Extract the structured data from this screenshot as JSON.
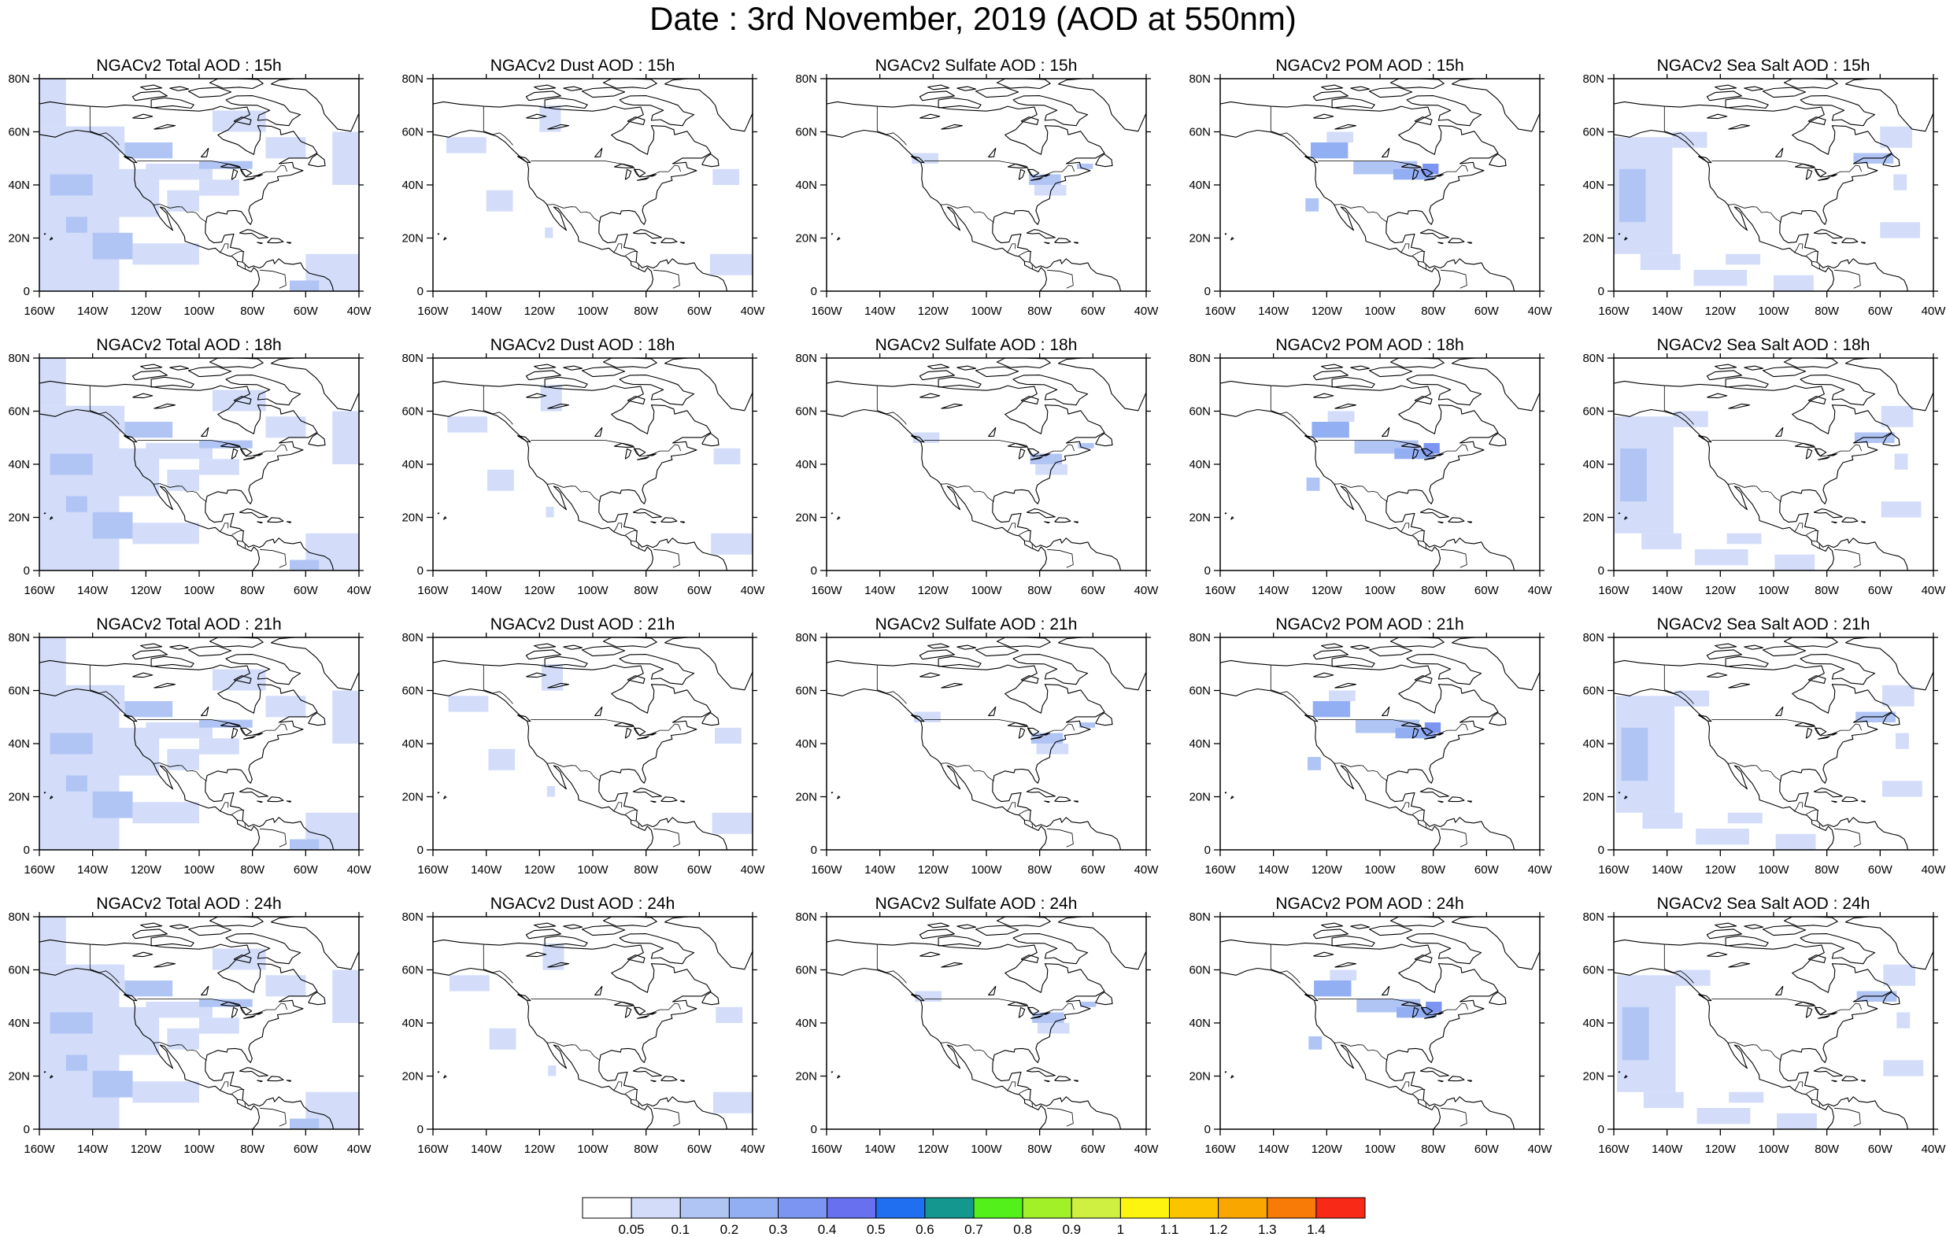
{
  "title": "Date : 3rd November, 2019 (AOD at 550nm)",
  "axis": {
    "lon_ticks": [
      "160W",
      "140W",
      "120W",
      "100W",
      "80W",
      "60W",
      "40W"
    ],
    "lat_ticks": [
      "80N",
      "60N",
      "40N",
      "20N",
      "0"
    ]
  },
  "colors": {
    "line": "#000000",
    "palette": [
      "#ffffff",
      "#d3ddf9",
      "#b1c5f5",
      "#93aff4",
      "#7c95f2",
      "#6970ef",
      "#1f6ff0",
      "#13978e",
      "#53f01b",
      "#a2f128",
      "#cff040",
      "#fdf510",
      "#fbc300",
      "#f9a600",
      "#f97b07",
      "#f82a17"
    ]
  },
  "colorbar": {
    "labels": [
      "0.05",
      "0.1",
      "0.2",
      "0.3",
      "0.4",
      "0.5",
      "0.6",
      "0.7",
      "0.8",
      "0.9",
      "1",
      "1.1",
      "1.2",
      "1.3",
      "1.4"
    ]
  },
  "panels": [
    {
      "title": "NGACv2 Total AOD : 15h",
      "species": "total"
    },
    {
      "title": "NGACv2 Dust AOD : 15h",
      "species": "dust"
    },
    {
      "title": "NGACv2 Sulfate AOD : 15h",
      "species": "sulfate"
    },
    {
      "title": "NGACv2 POM AOD : 15h",
      "species": "pom"
    },
    {
      "title": "NGACv2 Sea Salt AOD : 15h",
      "species": "seasalt"
    },
    {
      "title": "NGACv2 Total AOD : 18h",
      "species": "total"
    },
    {
      "title": "NGACv2 Dust AOD : 18h",
      "species": "dust"
    },
    {
      "title": "NGACv2 Sulfate AOD : 18h",
      "species": "sulfate"
    },
    {
      "title": "NGACv2 POM AOD : 18h",
      "species": "pom"
    },
    {
      "title": "NGACv2 Sea Salt AOD : 18h",
      "species": "seasalt"
    },
    {
      "title": "NGACv2 Total AOD : 21h",
      "species": "total"
    },
    {
      "title": "NGACv2 Dust AOD : 21h",
      "species": "dust"
    },
    {
      "title": "NGACv2 Sulfate AOD : 21h",
      "species": "sulfate"
    },
    {
      "title": "NGACv2 POM AOD : 21h",
      "species": "pom"
    },
    {
      "title": "NGACv2 Sea Salt AOD : 21h",
      "species": "seasalt"
    },
    {
      "title": "NGACv2 Total AOD : 24h",
      "species": "total"
    },
    {
      "title": "NGACv2 Dust AOD : 24h",
      "species": "dust"
    },
    {
      "title": "NGACv2 Sulfate AOD : 24h",
      "species": "sulfate"
    },
    {
      "title": "NGACv2 POM AOD : 24h",
      "species": "pom"
    },
    {
      "title": "NGACv2 Sea Salt  AOD : 24h",
      "species": "seasalt"
    }
  ]
}
